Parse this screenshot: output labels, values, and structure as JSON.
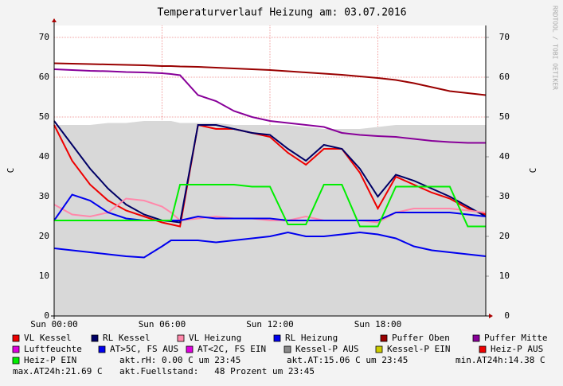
{
  "chart_data": {
    "type": "line",
    "title": "Temperaturverlauf Heizung am: 03.07.2016",
    "y_label": "C",
    "y2_label": "C",
    "watermark": "RRDTOOL / TOBI OETIKER",
    "grid": true,
    "x": [
      0,
      1,
      2,
      3,
      4,
      5,
      6,
      6.5,
      7,
      8,
      9,
      10,
      11,
      12,
      13,
      14,
      15,
      16,
      17,
      18,
      19,
      20,
      21,
      22,
      23,
      24
    ],
    "xlim": [
      0,
      24
    ],
    "xticks": [
      {
        "value": 0,
        "label": "Sun 00:00"
      },
      {
        "value": 6,
        "label": "Sun 06:00"
      },
      {
        "value": 12,
        "label": "Sun 12:00"
      },
      {
        "value": 18,
        "label": "Sun 18:00"
      }
    ],
    "ylim": [
      0,
      73
    ],
    "yticks": [
      0,
      10,
      20,
      30,
      40,
      50,
      60,
      70
    ],
    "y2lim": [
      0,
      73
    ],
    "y2ticks": [
      0,
      10,
      20,
      30,
      40,
      50,
      60,
      70
    ],
    "series": [
      {
        "name": "VL Kessel",
        "color": "#ee0000",
        "values": [
          48,
          39,
          33,
          29,
          26.5,
          25,
          23.5,
          23,
          22.5,
          48,
          47,
          47,
          46,
          45,
          41,
          38,
          42,
          42,
          36,
          27,
          35,
          33,
          31,
          29.5,
          27,
          25.5
        ]
      },
      {
        "name": "RL Kessel",
        "color": "#000066",
        "values": [
          49,
          43,
          37,
          32,
          28,
          25.5,
          24,
          23.8,
          23.5,
          48,
          48,
          47,
          46,
          45.5,
          42,
          39,
          43,
          42,
          37,
          30,
          35.5,
          34,
          32,
          30,
          27.5,
          25
        ]
      },
      {
        "name": "VL Heizung",
        "color": "#ff88aa",
        "values": [
          28,
          25.5,
          25,
          26,
          29.5,
          29,
          27.5,
          26,
          24,
          24.5,
          25,
          24.5,
          24.5,
          24,
          24,
          25,
          24,
          24,
          24,
          23.5,
          26,
          27,
          27,
          27,
          26.5,
          26
        ]
      },
      {
        "name": "RL Heizung",
        "color": "#0000ee",
        "values": [
          24,
          30.5,
          29,
          26,
          24.5,
          24,
          24,
          24,
          24,
          25,
          24.5,
          24.5,
          24.5,
          24.5,
          24,
          24,
          24,
          24,
          24,
          24,
          26,
          26,
          26,
          26,
          25.5,
          25
        ]
      },
      {
        "name": "Puffer Oben",
        "color": "#990000",
        "values": [
          63.5,
          63.4,
          63.3,
          63.2,
          63.1,
          63,
          62.8,
          62.8,
          62.7,
          62.6,
          62.4,
          62.2,
          62,
          61.8,
          61.5,
          61.2,
          60.9,
          60.6,
          60.2,
          59.8,
          59.3,
          58.5,
          57.5,
          56.5,
          56,
          55.5
        ]
      },
      {
        "name": "Puffer Mitte",
        "color": "#880099",
        "values": [
          62,
          61.8,
          61.6,
          61.5,
          61.3,
          61.2,
          61,
          60.8,
          60.5,
          55.5,
          54,
          51.5,
          50,
          49,
          48.5,
          48,
          47.5,
          46,
          45.5,
          45.2,
          45,
          44.5,
          44,
          43.7,
          43.5,
          43.5
        ]
      },
      {
        "name": "Luftfeuchte",
        "color": "#dd00dd",
        "values": [
          null,
          null,
          null,
          null,
          null,
          null,
          null,
          null,
          null,
          null,
          null,
          null,
          null,
          null,
          null,
          null,
          null,
          null,
          null,
          null,
          null,
          null,
          null,
          null,
          null,
          null
        ]
      },
      {
        "name": "AT>5C, FS AUS",
        "color": "#0000ee",
        "values": [
          17,
          16.5,
          16,
          15.5,
          15,
          14.7,
          17.5,
          19,
          19,
          19,
          18.5,
          19,
          19.5,
          20,
          21,
          20,
          20,
          20.5,
          21,
          20.5,
          19.5,
          17.5,
          16.5,
          16,
          15.5,
          15
        ]
      },
      {
        "name": "AT<2C, FS EIN",
        "color": "#dd00dd",
        "values": [
          null,
          null,
          null,
          null,
          null,
          null,
          null,
          null,
          null,
          null,
          null,
          null,
          null,
          null,
          null,
          null,
          null,
          null,
          null,
          null,
          null,
          null,
          null,
          null,
          null,
          null
        ]
      },
      {
        "name": "Kessel-P AUS",
        "color": "#888888",
        "area": true,
        "values": [
          48,
          48,
          48,
          48.5,
          48.5,
          49,
          49,
          49,
          48.5,
          48.5,
          48.5,
          48,
          48,
          48,
          48,
          47.5,
          47,
          47,
          47,
          47.5,
          48,
          48,
          48,
          48,
          48,
          48
        ]
      },
      {
        "name": "Kessel-P EIN",
        "color": "#cccc00",
        "values": [
          null,
          null,
          null,
          null,
          null,
          null,
          null,
          null,
          null,
          null,
          null,
          null,
          null,
          null,
          null,
          null,
          null,
          null,
          null,
          null,
          null,
          null,
          null,
          null,
          null,
          null
        ]
      },
      {
        "name": "Heiz-P AUS",
        "color": "#ee0000",
        "values": [
          null,
          null,
          null,
          null,
          null,
          null,
          null,
          null,
          null,
          null,
          null,
          null,
          null,
          null,
          null,
          null,
          null,
          null,
          null,
          null,
          null,
          null,
          null,
          null,
          null,
          null
        ]
      },
      {
        "name": "Heiz-P EIN",
        "color": "#00ee00",
        "values": [
          24,
          24,
          24,
          24,
          24,
          24,
          24,
          24,
          33,
          33,
          33,
          33,
          32.5,
          32.5,
          23,
          23,
          33,
          33,
          22.5,
          22.5,
          32.5,
          32.5,
          32.5,
          32.5,
          22.5,
          22.5
        ]
      }
    ],
    "notes": [
      "akt.rH: 0.00 C um 23:45",
      "akt.AT:15.06 C um 23:45",
      "min.AT24h:14.38 C",
      "max.AT24h:21.69 C",
      "akt.Fuellstand:   48 Prozent um 23:45"
    ]
  }
}
